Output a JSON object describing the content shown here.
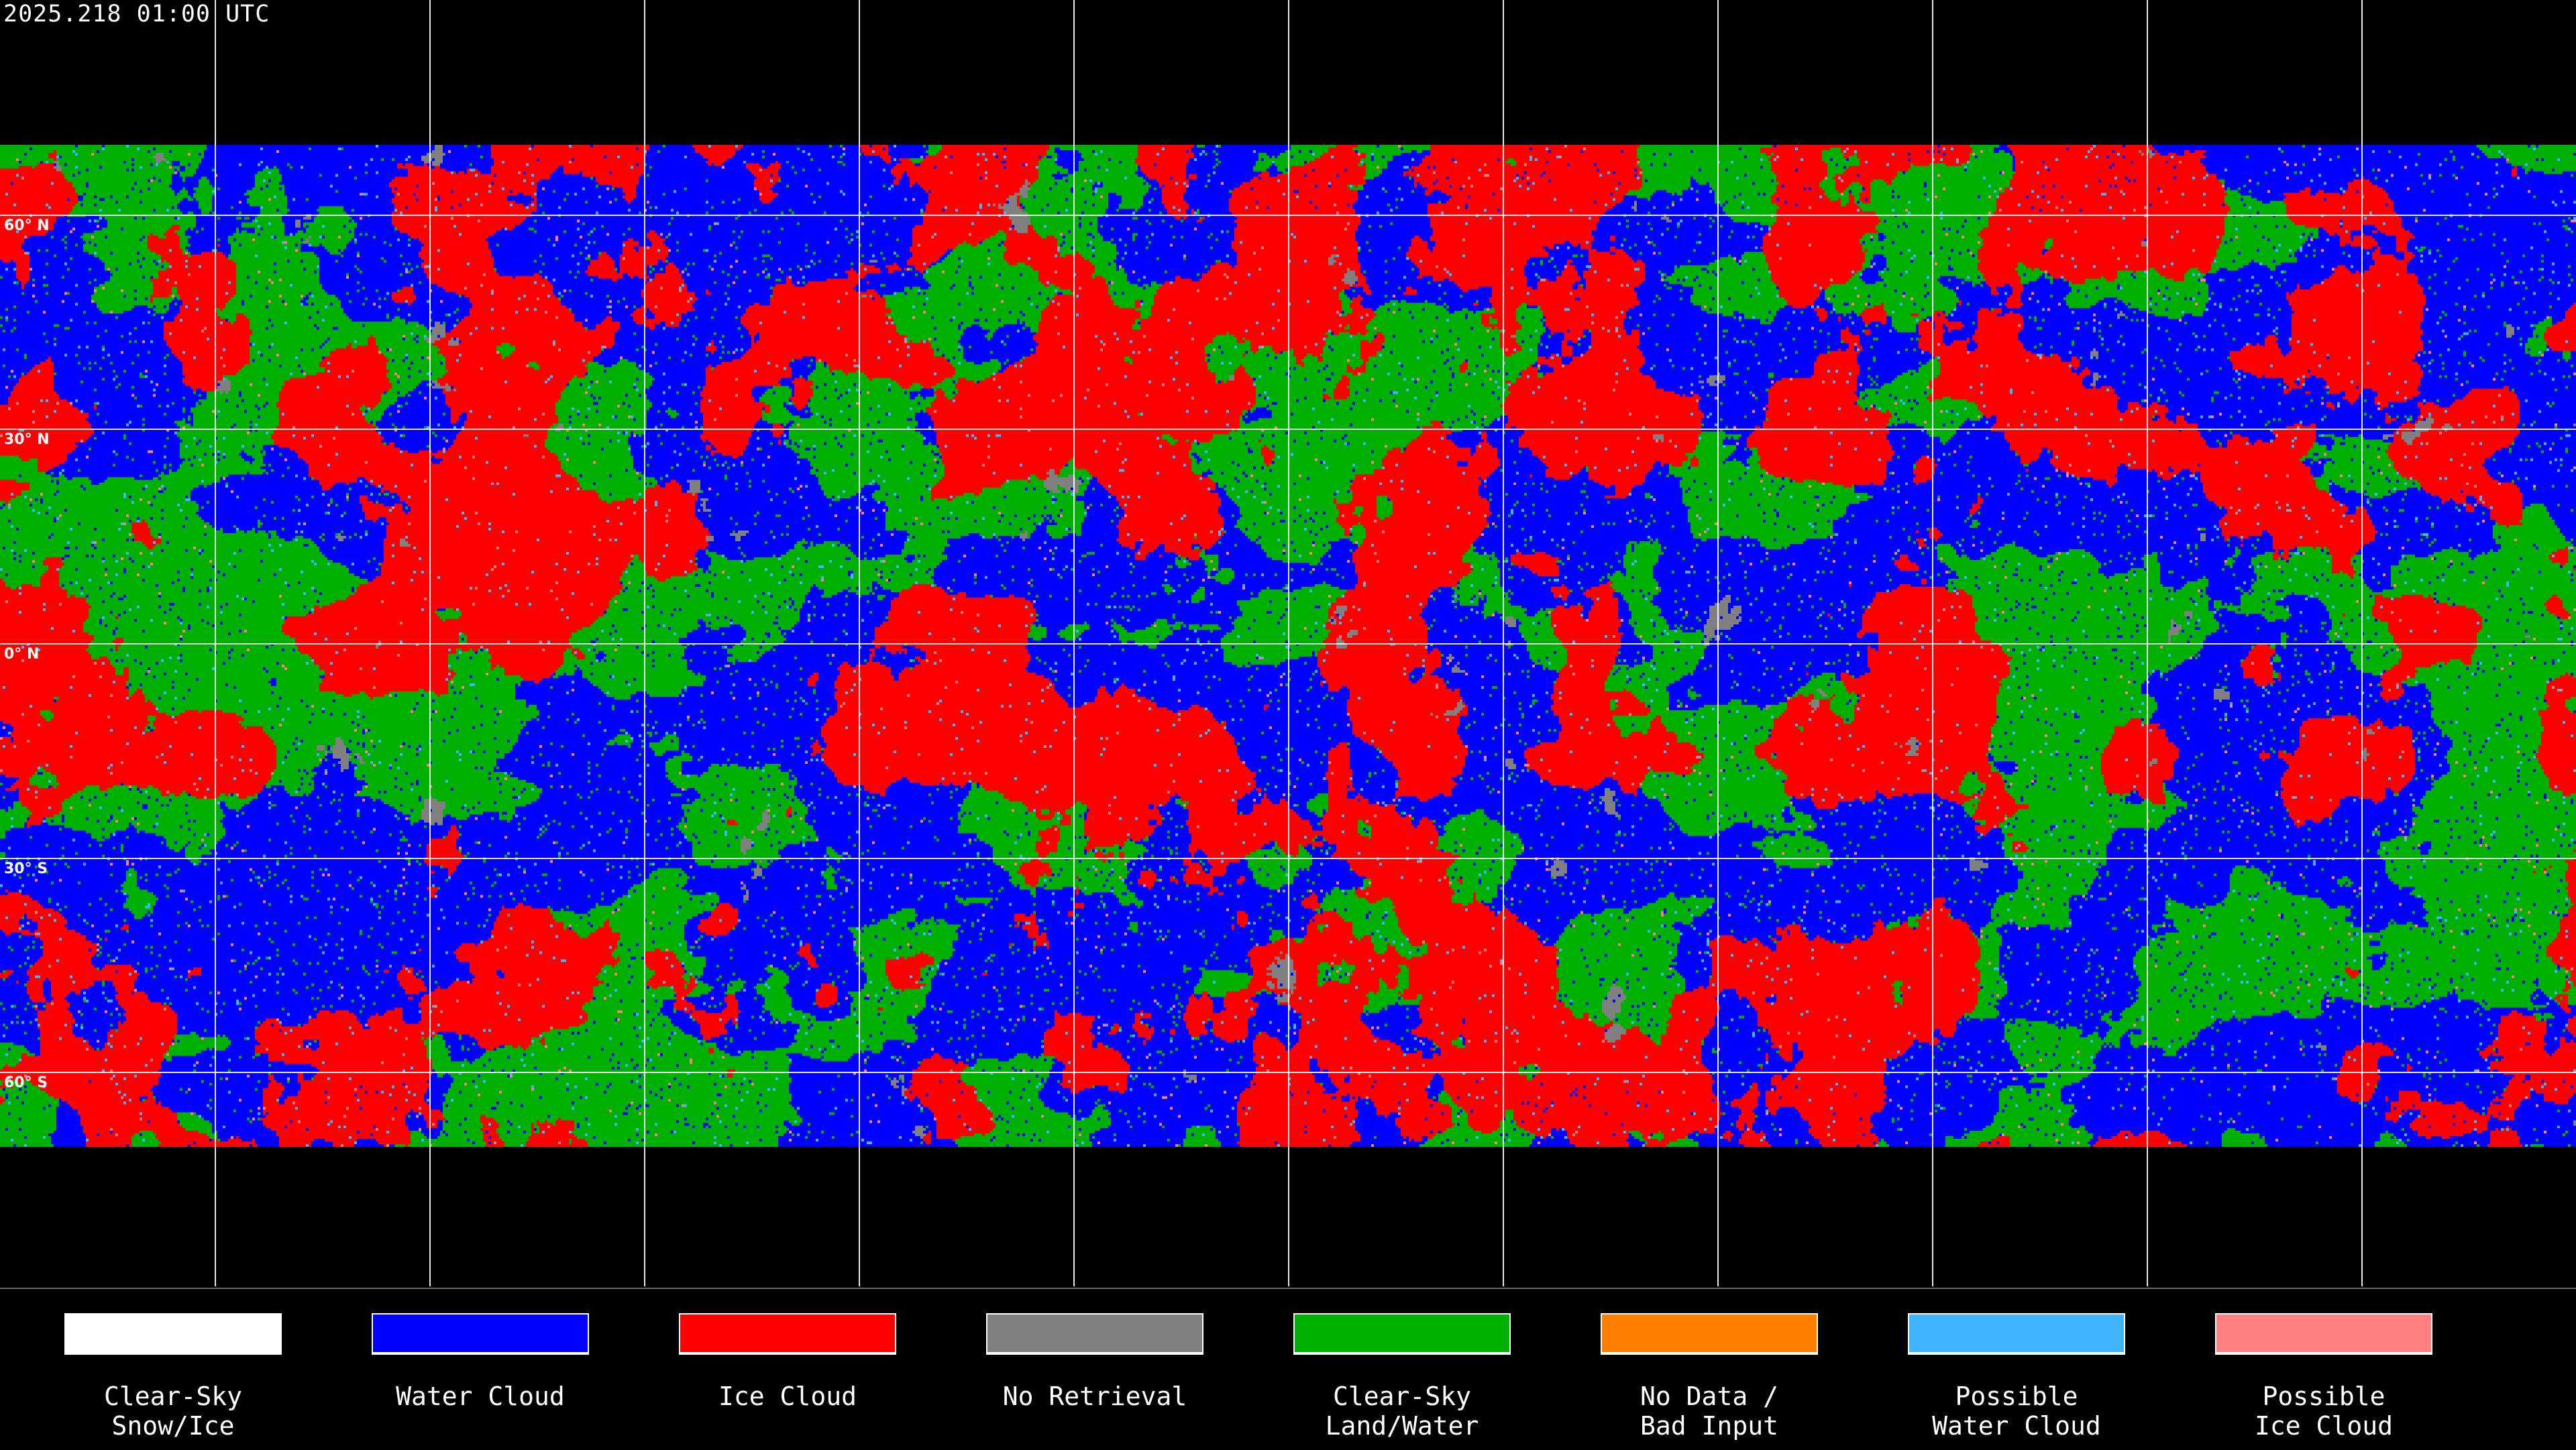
{
  "title": "2025.218 01:00 UTC",
  "map": {
    "projection": "equirectangular",
    "grid_longitudes_deg": [
      -150,
      -120,
      -90,
      -60,
      -30,
      0,
      30,
      60,
      90,
      120,
      150
    ],
    "grid_latitudes": [
      {
        "lat": 60,
        "label": "60° N"
      },
      {
        "lat": 30,
        "label": "30° N"
      },
      {
        "lat": 0,
        "label": "0° N"
      },
      {
        "lat": -30,
        "label": "30° S"
      },
      {
        "lat": -60,
        "label": "60° S"
      }
    ],
    "grid_color": "#ffffff",
    "coverage_lat_range": [
      70,
      -70
    ]
  },
  "legend": [
    {
      "label1": "Clear-Sky",
      "label2": "Snow/Ice",
      "color": "#ffffff"
    },
    {
      "label1": "Water Cloud",
      "label2": "",
      "color": "#0000ff"
    },
    {
      "label1": "Ice Cloud",
      "label2": "",
      "color": "#ff0000"
    },
    {
      "label1": "No Retrieval",
      "label2": "",
      "color": "#808080"
    },
    {
      "label1": "Clear-Sky",
      "label2": "Land/Water",
      "color": "#00b000"
    },
    {
      "label1": "No Data /",
      "label2": "Bad Input",
      "color": "#ff8000"
    },
    {
      "label1": "Possible",
      "label2": "Water Cloud",
      "color": "#40b4ff"
    },
    {
      "label1": "Possible",
      "label2": "Ice Cloud",
      "color": "#ff8080"
    }
  ]
}
